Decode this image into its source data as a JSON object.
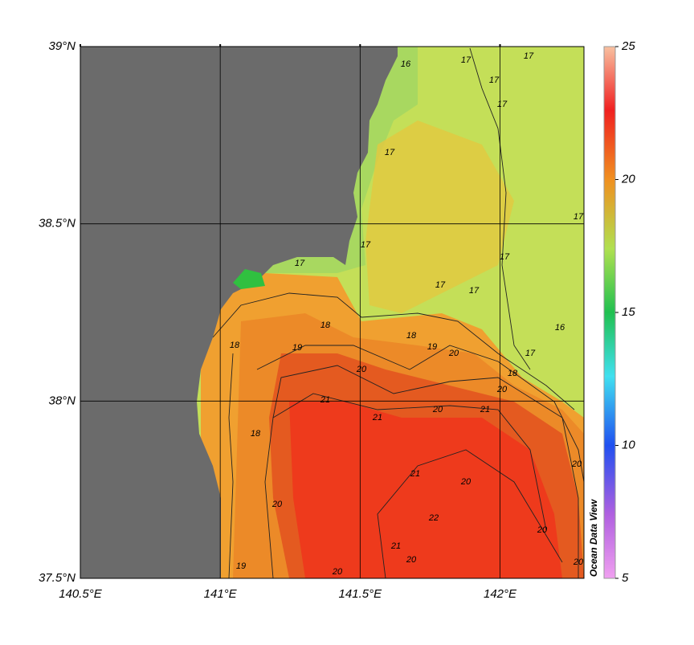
{
  "map": {
    "xlim": [
      140.5,
      142.3
    ],
    "ylim": [
      37.5,
      39
    ],
    "xticks": [
      {
        "value": 140.5,
        "label": "140.5°E"
      },
      {
        "value": 141,
        "label": "141°E"
      },
      {
        "value": 141.5,
        "label": "141.5°E"
      },
      {
        "value": 142,
        "label": "142°E"
      }
    ],
    "yticks": [
      {
        "value": 37.5,
        "label": "37.5°N"
      },
      {
        "value": 38,
        "label": "38°N"
      },
      {
        "value": 38.5,
        "label": "38.5°N"
      },
      {
        "value": 39,
        "label": "39°N"
      }
    ],
    "grid": true,
    "contour_labels": [
      17,
      17,
      17,
      17,
      17,
      17,
      17,
      17,
      17,
      17,
      17,
      17,
      18,
      18,
      18,
      18,
      18,
      19,
      19,
      19,
      20,
      20,
      20,
      20,
      20,
      20,
      20,
      20,
      20,
      20,
      20,
      21,
      21,
      21,
      21,
      21,
      22,
      16,
      16
    ]
  },
  "colorbar": {
    "lim": [
      5,
      25
    ],
    "ticks": [
      5,
      10,
      15,
      20,
      25
    ],
    "label": "Ocean Data View"
  }
}
